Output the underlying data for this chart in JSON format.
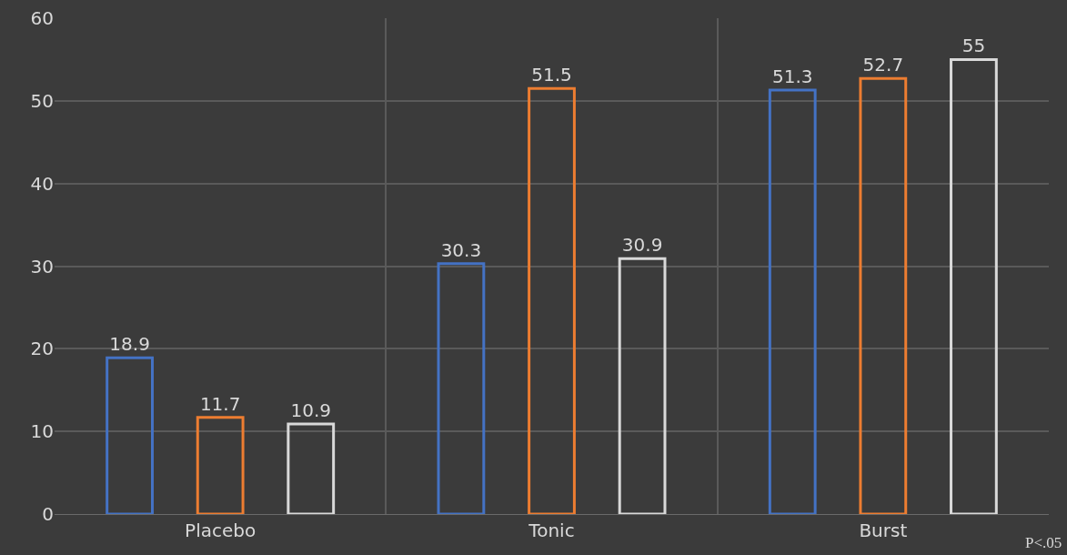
{
  "chart_data": {
    "type": "bar",
    "categories": [
      "Placebo",
      "Tonic",
      "Burst"
    ],
    "series": [
      {
        "color": "#4472c4",
        "values": [
          18.9,
          30.3,
          51.3
        ]
      },
      {
        "color": "#ed7d31",
        "values": [
          11.7,
          51.5,
          52.7
        ]
      },
      {
        "color": "#d9d9d9",
        "values": [
          10.9,
          30.9,
          55
        ]
      }
    ],
    "ylim": [
      0,
      60
    ],
    "yticks": [
      0,
      10,
      20,
      30,
      40,
      50,
      60
    ],
    "grid": true,
    "data_labels": true,
    "annotations": [
      "P<.05"
    ]
  }
}
